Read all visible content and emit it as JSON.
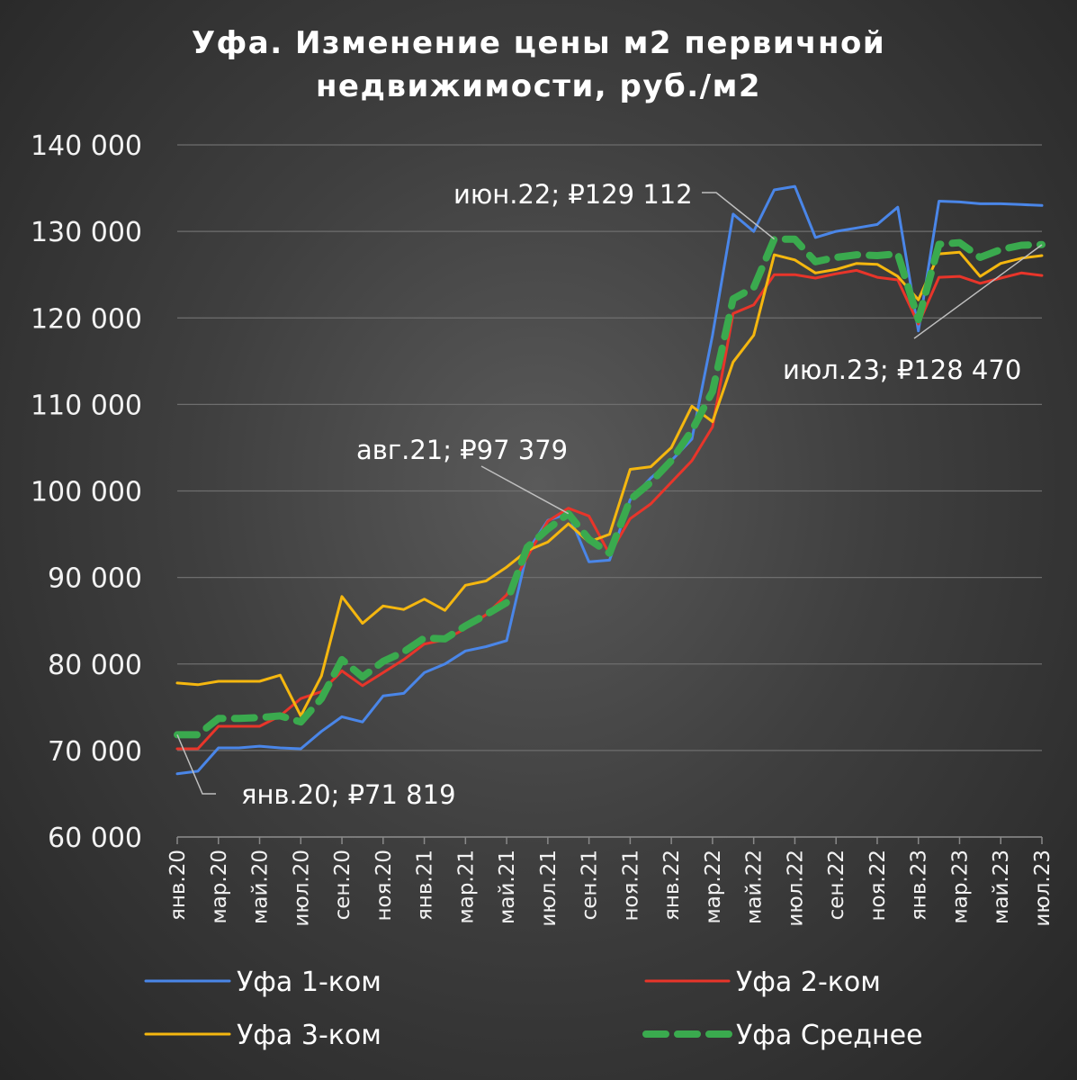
{
  "chart_data": {
    "type": "line",
    "title": "Уфа. Изменение цены м2 первичной недвижимости, руб./м2",
    "title_lines": [
      "Уфа. Изменение цены м2 первичной",
      "недвижимости, руб./м2"
    ],
    "ylim": [
      60000,
      140000
    ],
    "y_ticks": [
      60000,
      70000,
      80000,
      90000,
      100000,
      110000,
      120000,
      130000,
      140000
    ],
    "y_tick_labels": [
      "60 000",
      "70 000",
      "80 000",
      "90 000",
      "100 000",
      "110 000",
      "120 000",
      "130 000",
      "140 000"
    ],
    "grid": true,
    "x": [
      "янв.20",
      "фев.20",
      "мар.20",
      "апр.20",
      "май.20",
      "июн.20",
      "июл.20",
      "авг.20",
      "сен.20",
      "окт.20",
      "ноя.20",
      "дек.20",
      "янв.21",
      "фев.21",
      "мар.21",
      "апр.21",
      "май.21",
      "июн.21",
      "июл.21",
      "авг.21",
      "сен.21",
      "окт.21",
      "ноя.21",
      "дек.21",
      "янв.22",
      "фев.22",
      "мар.22",
      "апр.22",
      "май.22",
      "июн.22",
      "июл.22",
      "авг.22",
      "сен.22",
      "окт.22",
      "ноя.22",
      "дек.22",
      "янв.23",
      "фев.23",
      "мар.23",
      "апр.23",
      "май.23",
      "июн.23",
      "июл.23"
    ],
    "x_tick_labels": [
      "янв.20",
      "мар.20",
      "май.20",
      "июл.20",
      "сен.20",
      "ноя.20",
      "янв.21",
      "мар.21",
      "май.21",
      "июл.21",
      "сен.21",
      "ноя.21",
      "янв.22",
      "мар.22",
      "май.22",
      "июл.22",
      "сен.22",
      "ноя.22",
      "янв.23",
      "мар.23",
      "май.23",
      "июл.23"
    ],
    "legend_position": "bottom",
    "series": [
      {
        "name": "Уфа 1-ком",
        "color": "#4a86e8",
        "style": "solid",
        "values": [
          67300,
          67600,
          70300,
          70300,
          70500,
          70300,
          70200,
          72200,
          73900,
          73300,
          76300,
          76600,
          79000,
          80000,
          81500,
          82000,
          82700,
          93000,
          96600,
          97400,
          91800,
          92000,
          99000,
          101500,
          103500,
          106000,
          118000,
          132000,
          130000,
          134800,
          135200,
          129300,
          130000,
          130400,
          130800,
          132800,
          118500,
          133500,
          133400,
          133200,
          133200,
          133100,
          133000
        ]
      },
      {
        "name": "Уфа 2-ком",
        "color": "#e8352a",
        "style": "solid",
        "values": [
          70200,
          70200,
          72800,
          72800,
          72800,
          74000,
          76000,
          76800,
          79200,
          77500,
          79000,
          80500,
          82300,
          82800,
          84100,
          85700,
          88000,
          92400,
          96500,
          98000,
          97100,
          92700,
          96800,
          98500,
          101000,
          103500,
          107400,
          120500,
          121500,
          125000,
          125000,
          124600,
          125100,
          125500,
          124700,
          124400,
          119300,
          124700,
          124800,
          124000,
          124600,
          125200,
          124900
        ]
      },
      {
        "name": "Уфа 3-ком",
        "color": "#f5b70f",
        "style": "solid",
        "values": [
          77800,
          77600,
          78000,
          78000,
          78000,
          78700,
          74000,
          78600,
          87800,
          84700,
          86700,
          86300,
          87500,
          86200,
          89100,
          89600,
          91200,
          93100,
          94100,
          96200,
          94100,
          95000,
          102500,
          102800,
          105000,
          109800,
          108000,
          114900,
          118000,
          127300,
          126700,
          125200,
          125600,
          126300,
          126200,
          124800,
          122100,
          127400,
          127600,
          124800,
          126300,
          126900,
          127200
        ]
      },
      {
        "name": "Уфа Среднее",
        "color": "#3aaa4e",
        "style": "dashed",
        "values": [
          71819,
          71819,
          73700,
          73700,
          73800,
          74000,
          73300,
          76000,
          80500,
          78500,
          80300,
          81400,
          83000,
          82900,
          84400,
          85700,
          87100,
          93500,
          95600,
          97379,
          94400,
          92800,
          99000,
          101000,
          103500,
          107000,
          111500,
          122200,
          123500,
          129112,
          129100,
          126500,
          127000,
          127300,
          127200,
          127400,
          119800,
          128500,
          128700,
          127000,
          127900,
          128400,
          128470
        ]
      }
    ],
    "annotations": [
      {
        "label": "янв.20",
        "value": "₽71 819",
        "text": "янв.20;  ₽71 819"
      },
      {
        "label": "авг.21",
        "value": "₽97 379",
        "text": "авг.21;  ₽97 379"
      },
      {
        "label": "июн.22",
        "value": "₽129 112",
        "text": "июн.22;  ₽129 112"
      },
      {
        "label": "июл.23",
        "value": "₽128 470",
        "text": "июл.23;  ₽128 470"
      }
    ]
  }
}
